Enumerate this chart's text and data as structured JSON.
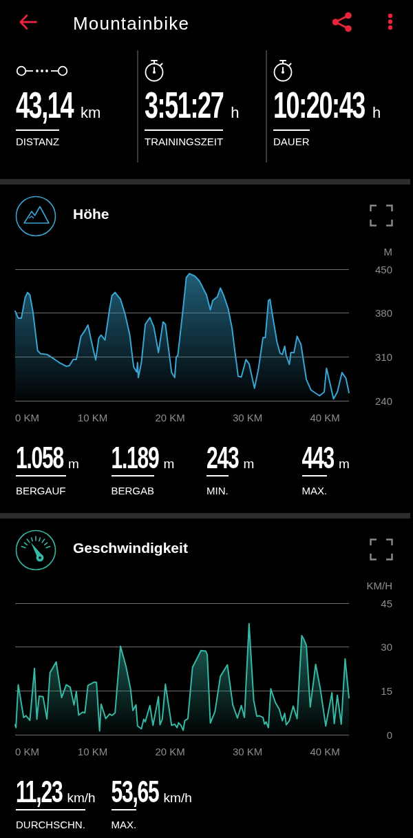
{
  "chart_data": [
    {
      "type": "other",
      "title": "Mountainbike",
      "annotations": [
        "43,14",
        "km",
        "DISTANZ",
        "3:51:27",
        "h",
        "TRAININGSZEIT",
        "10:20:43",
        "h",
        "DAUER"
      ]
    },
    {
      "type": "area",
      "title": "Höhe",
      "ylabel": "M",
      "color": "#39a5d2",
      "marker": "none",
      "grid": "y",
      "x": [
        0,
        0.4,
        0.8,
        1.3,
        1.6,
        1.9,
        2.3,
        2.9,
        3.3,
        4.1,
        4.5,
        5.7,
        6.6,
        7.0,
        7.5,
        7.9,
        8.5,
        9.0,
        9.4,
        9.9,
        10.4,
        10.8,
        11.1,
        11.6,
        12.2,
        12.5,
        12.9,
        13.6,
        14.2,
        14.8,
        15.3,
        15.7,
        15.8,
        15.9,
        16.3,
        16.8,
        17.4,
        17.9,
        18.5,
        19.1,
        19.4,
        20.2,
        20.6,
        20.8,
        21.0,
        21.7,
        22.1,
        22.5,
        23.2,
        23.8,
        24.7,
        25.2,
        25.5,
        26.1,
        26.5,
        26.9,
        27.5,
        28.0,
        28.4,
        28.8,
        29.2,
        29.8,
        30.2,
        30.9,
        31.4,
        32.0,
        32.3,
        32.7,
        32.9,
        33.3,
        33.8,
        34.2,
        34.5,
        34.8,
        35.0,
        35.4,
        35.6,
        36.0,
        36.4,
        36.9,
        37.6,
        38.2,
        39.3,
        39.9,
        40.2,
        40.7,
        41.1,
        41.6,
        42.2,
        42.7,
        43.1
      ],
      "values": [
        383,
        372,
        372,
        405,
        413,
        409,
        382,
        320,
        315,
        314,
        311,
        301,
        295,
        296,
        306,
        306,
        343,
        352,
        361,
        332,
        305,
        340,
        345,
        337,
        387,
        408,
        413,
        402,
        378,
        345,
        294,
        286,
        301,
        277,
        301,
        362,
        373,
        358,
        317,
        366,
        362,
        285,
        277,
        310,
        312,
        389,
        437,
        443,
        439,
        431,
        409,
        385,
        400,
        406,
        420,
        409,
        387,
        356,
        316,
        279,
        278,
        306,
        299,
        260,
        290,
        341,
        341,
        400,
        402,
        371,
        334,
        316,
        314,
        327,
        312,
        298,
        317,
        317,
        343,
        330,
        274,
        257,
        248,
        254,
        292,
        265,
        243,
        254,
        285,
        276,
        253
      ],
      "xlim": [
        0,
        43.1
      ],
      "xticks": [
        {
          "value": 0,
          "label": "0 KM"
        },
        {
          "value": 10,
          "label": "10 KM"
        },
        {
          "value": 20,
          "label": "20 KM"
        },
        {
          "value": 30,
          "label": "30 KM"
        },
        {
          "value": 40,
          "label": "40 KM"
        }
      ],
      "ylim": [
        240,
        450
      ],
      "yticks": [
        240,
        310,
        380,
        450
      ],
      "annotations": [
        "1.058",
        "m",
        "BERGAUF",
        "1.189",
        "m",
        "BERGAB",
        "243",
        "m",
        "MIN.",
        "443",
        "m",
        "MAX."
      ]
    },
    {
      "type": "area",
      "title": "Geschwindigkeit",
      "ylabel": "KM/H",
      "color": "#37b8a6",
      "marker": "none",
      "grid": "y",
      "x": [
        0,
        0.1,
        0.4,
        1.1,
        1.4,
        1.9,
        2.5,
        2.8,
        3.1,
        3.6,
        4.1,
        4.5,
        5.3,
        6.0,
        6.6,
        7.1,
        7.6,
        7.9,
        8.2,
        8.7,
        9.0,
        9.4,
        10.2,
        10.5,
        10.9,
        11.1,
        11.7,
        12.2,
        12.5,
        12.9,
        13.6,
        14.3,
        14.9,
        15.2,
        15.6,
        15.8,
        16.3,
        16.6,
        16.8,
        17.4,
        17.8,
        18.5,
        18.7,
        19.0,
        19.4,
        20.2,
        20.6,
        20.9,
        21.1,
        21.4,
        21.7,
        21.9,
        22.3,
        22.9,
        24.0,
        24.6,
        24.8,
        25.2,
        25.8,
        26.5,
        27.4,
        28.1,
        28.7,
        29.2,
        29.6,
        30.2,
        30.8,
        31.2,
        31.5,
        32.0,
        32.2,
        32.4,
        32.7,
        33.0,
        33.6,
        34.1,
        34.5,
        34.8,
        35.0,
        35.4,
        35.9,
        36.4,
        37.0,
        37.3,
        37.6,
        38.1,
        38.8,
        39.4,
        40.1,
        40.9,
        41.2,
        41.6,
        42.1,
        42.6,
        43.1
      ],
      "values": [
        3.4,
        2.4,
        17.1,
        5.9,
        6.5,
        4.9,
        22.7,
        5.3,
        13.2,
        13.0,
        5.4,
        21.2,
        24.9,
        12.7,
        17.1,
        16.3,
        10.2,
        14.8,
        6.7,
        7.7,
        7.5,
        16.9,
        18.0,
        17.9,
        1.3,
        10.5,
        5.5,
        7.1,
        6.6,
        7.5,
        30.3,
        23.5,
        15.7,
        8.3,
        10.2,
        3.0,
        2.0,
        5.3,
        4.4,
        10.0,
        3.2,
        13.0,
        3.4,
        5.4,
        17.3,
        3.2,
        3.6,
        2.4,
        4.1,
        3.2,
        1.5,
        4.8,
        5.5,
        23.1,
        28.8,
        28.6,
        27.4,
        4.0,
        7.9,
        20.0,
        23.9,
        10.2,
        5.7,
        10.0,
        5.9,
        38.0,
        11.8,
        6.3,
        6.5,
        5.9,
        3.6,
        4.4,
        2.4,
        15.7,
        11.0,
        8.7,
        4.8,
        7.3,
        3.4,
        4.8,
        9.8,
        5.5,
        33.9,
        32.5,
        30.5,
        9.5,
        24.1,
        15.7,
        3.0,
        14.4,
        3.8,
        13.5,
        3.6,
        26.0,
        12.6
      ],
      "xlim": [
        0,
        43.1
      ],
      "xticks": [
        {
          "value": 0,
          "label": "0 KM"
        },
        {
          "value": 10,
          "label": "10 KM"
        },
        {
          "value": 20,
          "label": "20 KM"
        },
        {
          "value": 30,
          "label": "30 KM"
        },
        {
          "value": 40,
          "label": "40 KM"
        }
      ],
      "ylim": [
        0,
        45
      ],
      "yticks": [
        0,
        15,
        30,
        45
      ],
      "annotations": [
        "11,23",
        "km/h",
        "DURCHSCHN.",
        "53,65",
        "km/h",
        "MAX."
      ]
    }
  ]
}
